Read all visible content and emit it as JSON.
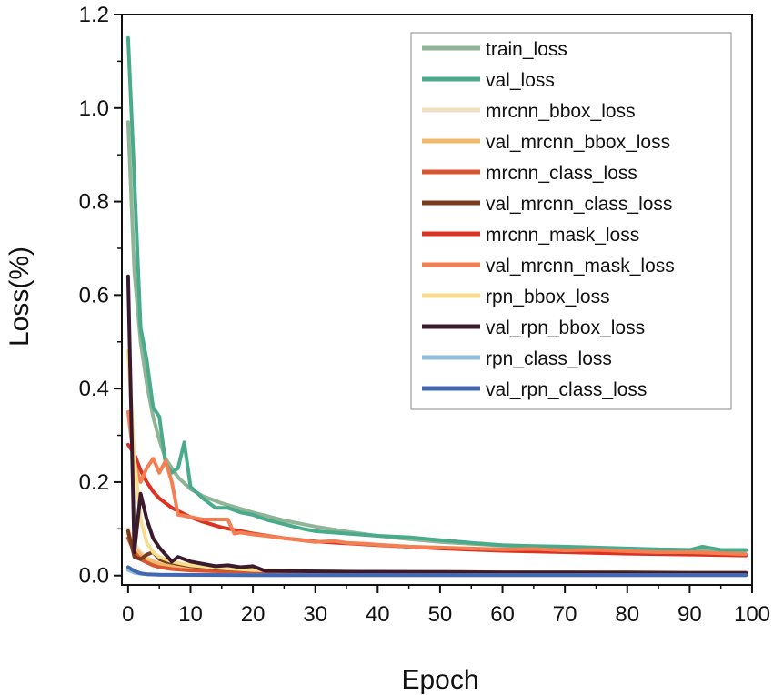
{
  "chart_data": {
    "type": "line",
    "title": "",
    "xlabel": "Epoch",
    "ylabel": "Loss(%)",
    "xlim": [
      -1,
      100
    ],
    "ylim": [
      -0.02,
      1.2
    ],
    "xticks": [
      0,
      10,
      20,
      30,
      40,
      50,
      60,
      70,
      80,
      90,
      100
    ],
    "xtick_labels": [
      "0",
      "10",
      "20",
      "30",
      "40",
      "50",
      "60",
      "70",
      "80",
      "90",
      "100"
    ],
    "yticks": [
      0.0,
      0.2,
      0.4,
      0.6,
      0.8,
      1.0,
      1.2
    ],
    "ytick_labels": [
      "0.0",
      "0.2",
      "0.4",
      "0.6",
      "0.8",
      "1.0",
      "1.2"
    ],
    "grid": false,
    "legend_position": "top-right",
    "series": [
      {
        "name": "train_loss",
        "color": "#8fb596",
        "x": [
          0,
          1,
          2,
          3,
          4,
          5,
          6,
          8,
          10,
          12,
          15,
          20,
          25,
          30,
          35,
          40,
          45,
          50,
          55,
          60,
          70,
          80,
          90,
          99
        ],
        "y": [
          0.97,
          0.65,
          0.5,
          0.41,
          0.34,
          0.29,
          0.25,
          0.21,
          0.185,
          0.17,
          0.155,
          0.135,
          0.118,
          0.105,
          0.094,
          0.085,
          0.078,
          0.072,
          0.068,
          0.064,
          0.06,
          0.057,
          0.055,
          0.054
        ]
      },
      {
        "name": "val_loss",
        "color": "#4aab8c",
        "x": [
          0,
          1,
          2,
          3,
          4,
          5,
          6,
          7,
          8,
          9,
          10,
          12,
          14,
          16,
          18,
          20,
          22,
          25,
          28,
          30,
          35,
          40,
          45,
          50,
          55,
          60,
          65,
          70,
          75,
          80,
          85,
          90,
          92,
          95,
          99
        ],
        "y": [
          1.15,
          0.85,
          0.53,
          0.46,
          0.36,
          0.34,
          0.24,
          0.22,
          0.23,
          0.285,
          0.19,
          0.165,
          0.145,
          0.145,
          0.135,
          0.13,
          0.12,
          0.11,
          0.1,
          0.095,
          0.09,
          0.085,
          0.082,
          0.076,
          0.07,
          0.065,
          0.063,
          0.062,
          0.06,
          0.058,
          0.056,
          0.055,
          0.062,
          0.055,
          0.055
        ]
      },
      {
        "name": "mrcnn_bbox_loss",
        "color": "#efe0c4",
        "x": [
          0,
          1,
          2,
          3,
          4,
          5,
          7,
          10,
          15,
          20,
          30,
          40,
          50,
          60,
          70,
          80,
          90,
          99
        ],
        "y": [
          0.1,
          0.07,
          0.05,
          0.04,
          0.032,
          0.026,
          0.02,
          0.015,
          0.012,
          0.01,
          0.008,
          0.007,
          0.006,
          0.006,
          0.005,
          0.005,
          0.005,
          0.005
        ]
      },
      {
        "name": "val_mrcnn_bbox_loss",
        "color": "#f0b96b",
        "x": [
          0,
          1,
          2,
          3,
          4,
          5,
          7,
          10,
          15,
          20,
          30,
          40,
          50,
          60,
          70,
          80,
          90,
          99
        ],
        "y": [
          0.09,
          0.06,
          0.045,
          0.035,
          0.03,
          0.025,
          0.02,
          0.016,
          0.012,
          0.01,
          0.009,
          0.008,
          0.007,
          0.007,
          0.006,
          0.006,
          0.006,
          0.006
        ]
      },
      {
        "name": "mrcnn_class_loss",
        "color": "#d85530",
        "x": [
          0,
          1,
          2,
          3,
          4,
          5,
          7,
          10,
          15,
          20,
          30,
          40,
          50,
          60,
          70,
          80,
          90,
          99
        ],
        "y": [
          0.08,
          0.05,
          0.035,
          0.028,
          0.022,
          0.018,
          0.014,
          0.011,
          0.009,
          0.008,
          0.007,
          0.006,
          0.006,
          0.005,
          0.005,
          0.005,
          0.005,
          0.005
        ]
      },
      {
        "name": "val_mrcnn_class_loss",
        "color": "#7a3b1e",
        "x": [
          0,
          1,
          2,
          3,
          4,
          5,
          6,
          8,
          10,
          12,
          15,
          20,
          25,
          30,
          40,
          50,
          60,
          70,
          80,
          90,
          99
        ],
        "y": [
          0.095,
          0.04,
          0.035,
          0.045,
          0.05,
          0.035,
          0.03,
          0.025,
          0.02,
          0.018,
          0.015,
          0.012,
          0.01,
          0.009,
          0.008,
          0.008,
          0.007,
          0.007,
          0.007,
          0.006,
          0.006
        ]
      },
      {
        "name": "mrcnn_mask_loss",
        "color": "#dc3222",
        "x": [
          0,
          1,
          2,
          3,
          4,
          5,
          7,
          10,
          12,
          15,
          20,
          25,
          30,
          40,
          50,
          60,
          70,
          80,
          90,
          99
        ],
        "y": [
          0.28,
          0.26,
          0.225,
          0.2,
          0.18,
          0.165,
          0.145,
          0.125,
          0.115,
          0.103,
          0.09,
          0.08,
          0.073,
          0.065,
          0.058,
          0.053,
          0.05,
          0.047,
          0.045,
          0.043
        ]
      },
      {
        "name": "val_mrcnn_mask_loss",
        "color": "#f47f52",
        "x": [
          0,
          1,
          2,
          3,
          4,
          5,
          6,
          7,
          8,
          9,
          10,
          12,
          14,
          16,
          17,
          18,
          20,
          22,
          25,
          28,
          30,
          33,
          35,
          38,
          40,
          45,
          50,
          55,
          60,
          65,
          70,
          75,
          80,
          85,
          90,
          95,
          99
        ],
        "y": [
          0.35,
          0.24,
          0.2,
          0.23,
          0.25,
          0.22,
          0.245,
          0.2,
          0.13,
          0.128,
          0.125,
          0.12,
          0.12,
          0.12,
          0.09,
          0.092,
          0.088,
          0.085,
          0.08,
          0.075,
          0.072,
          0.074,
          0.07,
          0.068,
          0.066,
          0.062,
          0.06,
          0.058,
          0.056,
          0.057,
          0.054,
          0.055,
          0.052,
          0.05,
          0.05,
          0.048,
          0.046
        ]
      },
      {
        "name": "rpn_bbox_loss",
        "color": "#f8dd8f",
        "x": [
          0,
          1,
          2,
          3,
          4,
          5,
          7,
          10,
          15,
          20,
          30,
          40,
          50,
          60,
          70,
          80,
          90,
          99
        ],
        "y": [
          0.48,
          0.25,
          0.12,
          0.07,
          0.05,
          0.04,
          0.03,
          0.022,
          0.016,
          0.012,
          0.009,
          0.007,
          0.006,
          0.005,
          0.005,
          0.004,
          0.004,
          0.004
        ]
      },
      {
        "name": "val_rpn_bbox_loss",
        "color": "#3b1a2e",
        "x": [
          0,
          1,
          2,
          3,
          4,
          5,
          6,
          7,
          8,
          9,
          10,
          12,
          14,
          16,
          18,
          20,
          22,
          25,
          30,
          35,
          40,
          50,
          60,
          70,
          80,
          90,
          99
        ],
        "y": [
          0.64,
          0.05,
          0.175,
          0.12,
          0.08,
          0.06,
          0.045,
          0.03,
          0.04,
          0.035,
          0.03,
          0.025,
          0.02,
          0.022,
          0.018,
          0.02,
          0.01,
          0.01,
          0.009,
          0.008,
          0.008,
          0.007,
          0.006,
          0.006,
          0.005,
          0.005,
          0.005
        ]
      },
      {
        "name": "rpn_class_loss",
        "color": "#93bcd9",
        "x": [
          0,
          1,
          2,
          3,
          5,
          10,
          20,
          30,
          50,
          70,
          99
        ],
        "y": [
          0.012,
          0.006,
          0.004,
          0.003,
          0.002,
          0.0015,
          0.001,
          0.001,
          0.001,
          0.001,
          0.001
        ]
      },
      {
        "name": "val_rpn_class_loss",
        "color": "#4467b2",
        "x": [
          0,
          1,
          2,
          3,
          5,
          10,
          20,
          30,
          50,
          70,
          99
        ],
        "y": [
          0.018,
          0.01,
          0.005,
          0.003,
          0.002,
          0.0015,
          0.001,
          0.001,
          0.001,
          0.001,
          0.001
        ]
      }
    ]
  }
}
